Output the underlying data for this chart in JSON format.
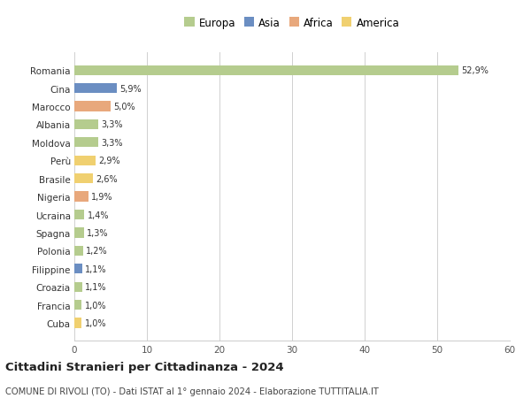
{
  "countries": [
    "Romania",
    "Cina",
    "Marocco",
    "Albania",
    "Moldova",
    "Perù",
    "Brasile",
    "Nigeria",
    "Ucraina",
    "Spagna",
    "Polonia",
    "Filippine",
    "Croazia",
    "Francia",
    "Cuba"
  ],
  "values": [
    52.9,
    5.9,
    5.0,
    3.3,
    3.3,
    2.9,
    2.6,
    1.9,
    1.4,
    1.3,
    1.2,
    1.1,
    1.1,
    1.0,
    1.0
  ],
  "labels": [
    "52,9%",
    "5,9%",
    "5,0%",
    "3,3%",
    "3,3%",
    "2,9%",
    "2,6%",
    "1,9%",
    "1,4%",
    "1,3%",
    "1,2%",
    "1,1%",
    "1,1%",
    "1,0%",
    "1,0%"
  ],
  "regions": [
    "Europa",
    "Asia",
    "Africa",
    "Europa",
    "Europa",
    "America",
    "America",
    "Africa",
    "Europa",
    "Europa",
    "Europa",
    "Asia",
    "Europa",
    "Europa",
    "America"
  ],
  "colors": {
    "Europa": "#b5cc8e",
    "Asia": "#6b8ec2",
    "Africa": "#e8a87c",
    "America": "#f0d070"
  },
  "title": "Cittadini Stranieri per Cittadinanza - 2024",
  "subtitle": "COMUNE DI RIVOLI (TO) - Dati ISTAT al 1° gennaio 2024 - Elaborazione TUTTITALIA.IT",
  "xlim": [
    0,
    60
  ],
  "xticks": [
    0,
    10,
    20,
    30,
    40,
    50,
    60
  ],
  "background_color": "#ffffff",
  "grid_color": "#d0d0d0"
}
